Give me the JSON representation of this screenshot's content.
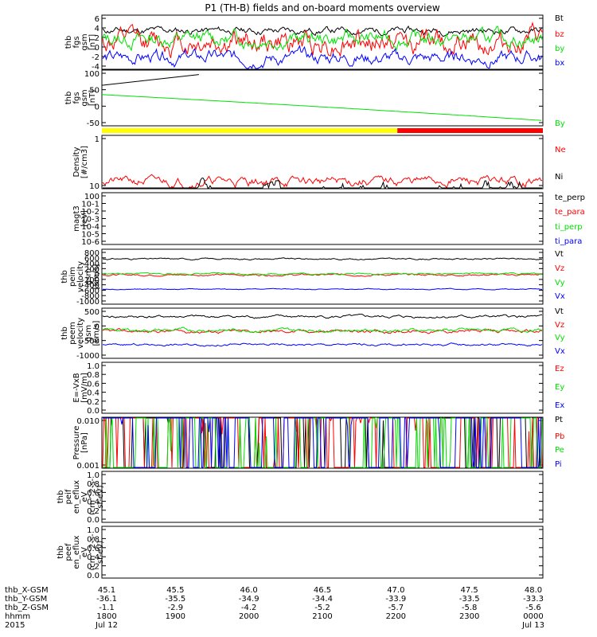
{
  "title": "P1 (TH-B) fields and on-board moments overview",
  "colors": {
    "black": "#000000",
    "red": "#ff0000",
    "green": "#00e000",
    "blue": "#0000ff",
    "yellow": "#ffff00"
  },
  "bottom_axis": {
    "row_labels": [
      "thb_X-GSM",
      "thb_Y-GSM",
      "thb_Z-GSM",
      "hhmm",
      "2015"
    ],
    "ticks": [
      {
        "x": "45.1",
        "y": "-36.1",
        "z": "-1.1",
        "hhmm": "1800",
        "date": "Jul 12"
      },
      {
        "x": "45.5",
        "y": "-35.5",
        "z": "-2.9",
        "hhmm": "1900",
        "date": ""
      },
      {
        "x": "46.0",
        "y": "-34.9",
        "z": "-4.2",
        "hhmm": "2000",
        "date": ""
      },
      {
        "x": "46.5",
        "y": "-34.4",
        "z": "-5.2",
        "hhmm": "2100",
        "date": ""
      },
      {
        "x": "47.0",
        "y": "-33.9",
        "z": "-5.7",
        "hhmm": "2200",
        "date": ""
      },
      {
        "x": "47.5",
        "y": "-33.5",
        "z": "-5.8",
        "hhmm": "2300",
        "date": ""
      },
      {
        "x": "48.0",
        "y": "-33.3",
        "z": "-5.6",
        "hhmm": "0000",
        "date": "Jul 13"
      }
    ]
  },
  "chart_data": [
    {
      "type": "line",
      "ylabel": [
        "thb",
        "fgs",
        "gsm",
        "[nT]"
      ],
      "ticks": [
        "-4",
        "-2",
        "0",
        "2",
        "4",
        "6"
      ],
      "ylim": [
        -4,
        6.5
      ],
      "series": [
        {
          "name": "Bt",
          "color": "#000000",
          "base": 3.8,
          "amp": 0.7,
          "seed": 11
        },
        {
          "name": "bz",
          "color": "#ff0000",
          "base": 1.3,
          "amp": 2.3,
          "seed": 12
        },
        {
          "name": "by",
          "color": "#00e000",
          "base": 2.0,
          "amp": 1.5,
          "seed": 13
        },
        {
          "name": "bx",
          "color": "#0000ff",
          "base": -2.2,
          "amp": 1.3,
          "seed": 14
        }
      ]
    },
    {
      "type": "line",
      "ylabel": [
        "thb",
        "fgs",
        "gsm",
        "[nT]"
      ],
      "ticks": [
        "-50",
        "0",
        "50",
        "100"
      ],
      "ylim": [
        -80,
        105
      ],
      "series": [
        {
          "name": "By",
          "color": "#00e000",
          "start": 25,
          "end": -72
        }
      ],
      "black_segment": {
        "start": 60,
        "end": 100,
        "x_end": 0.22
      },
      "mode_bar": {
        "yellow_fraction": 0.67
      }
    },
    {
      "type": "line",
      "ylabel": [
        "Density",
        "[#/cm3]"
      ],
      "ticks": [
        "10",
        "1"
      ],
      "log": true,
      "series": [
        {
          "name": "Ne",
          "color": "#ff0000",
          "base": 1.25,
          "amp": 0.25,
          "seed": 21
        },
        {
          "name": "Ni",
          "color": "#000000",
          "base": 0.55,
          "amp": 0.5,
          "seed": 22
        }
      ]
    },
    {
      "type": "line",
      "ylabel": [
        "magt3",
        "[eV]"
      ],
      "ticks": [
        "10-6",
        "10-5",
        "10-4",
        "10-3",
        "10-2",
        "10-1",
        "100"
      ],
      "series": [
        {
          "name": "te_perp",
          "color": "#000000"
        },
        {
          "name": "te_para",
          "color": "#ff0000"
        },
        {
          "name": "ti_perp",
          "color": "#00e000"
        },
        {
          "name": "ti_para",
          "color": "#0000ff"
        }
      ]
    },
    {
      "type": "line",
      "ylabel": [
        "thb",
        "peim",
        "velocity",
        "gsm",
        "[km/s]"
      ],
      "ticks": [
        "-1000",
        "-800",
        "-600",
        "-400",
        "-200",
        "0",
        "200",
        "400",
        "600",
        "800"
      ],
      "ylim": [
        -1000,
        800
      ],
      "series": [
        {
          "name": "Vt",
          "color": "#000000",
          "base": 560,
          "amp": 25,
          "seed": 31
        },
        {
          "name": "Vz",
          "color": "#ff0000",
          "base": -30,
          "amp": 30,
          "seed": 32
        },
        {
          "name": "Vy",
          "color": "#00e000",
          "base": 10,
          "amp": 25,
          "seed": 33
        },
        {
          "name": "Vx",
          "color": "#0000ff",
          "base": -560,
          "amp": 15,
          "seed": 34
        }
      ]
    },
    {
      "type": "line",
      "ylabel": [
        "thb",
        "peem",
        "velocity",
        "gsm",
        "[km/s]"
      ],
      "ticks": [
        "-1000",
        "-500",
        "0",
        "500"
      ],
      "ylim": [
        -1000,
        800
      ],
      "series": [
        {
          "name": "Vt",
          "color": "#000000",
          "base": 580,
          "amp": 50,
          "seed": 41
        },
        {
          "name": "Vz",
          "color": "#ff0000",
          "base": -20,
          "amp": 60,
          "seed": 42
        },
        {
          "name": "Vy",
          "color": "#00e000",
          "base": 30,
          "amp": 60,
          "seed": 43
        },
        {
          "name": "Vx",
          "color": "#0000ff",
          "base": -570,
          "amp": 40,
          "seed": 44
        }
      ]
    },
    {
      "type": "line",
      "ylabel": [
        "E=-VxB",
        "[mV/m]"
      ],
      "ticks": [
        "0.0",
        "0.2",
        "0.4",
        "0.6",
        "0.8",
        "1.0"
      ],
      "ylim": [
        0,
        1
      ],
      "series": [
        {
          "name": "Ez",
          "color": "#ff0000"
        },
        {
          "name": "Ey",
          "color": "#00e000"
        },
        {
          "name": "Ex",
          "color": "#0000ff"
        }
      ]
    },
    {
      "type": "line",
      "ylabel": [
        "Pressure",
        "[nPa]"
      ],
      "ticks": [
        "0.001",
        "0.010"
      ],
      "log": true,
      "series": [
        {
          "name": "Pt",
          "color": "#000000",
          "base": 0.031,
          "amp": 0.15,
          "seed": 51
        },
        {
          "name": "Pb",
          "color": "#ff0000",
          "base": 0.0065,
          "amp": 0.25,
          "seed": 52
        },
        {
          "name": "Pe",
          "color": "#00e000",
          "base": 0.0075,
          "amp": 0.15,
          "seed": 53
        },
        {
          "name": "Pi",
          "color": "#0000ff",
          "base": 0.024,
          "amp": 0.15,
          "seed": 54
        }
      ]
    },
    {
      "type": "line",
      "ylabel": [
        "thb",
        "peif",
        "en_eflux",
        "eV",
        "(cm^2-s-",
        "sr-eV)"
      ],
      "ticks": [
        "0.0",
        "0.2",
        "0.4",
        "0.6",
        "0.8",
        "1.0"
      ],
      "ylim": [
        0,
        1
      ],
      "series": []
    },
    {
      "type": "line",
      "ylabel": [
        "thb",
        "peef",
        "en_eflux",
        "eV",
        "(cm^2-s-",
        "sr-eV)"
      ],
      "ticks": [
        "0.0",
        "0.2",
        "0.4",
        "0.6",
        "0.8",
        "1.0"
      ],
      "ylim": [
        0,
        1
      ],
      "series": []
    }
  ]
}
